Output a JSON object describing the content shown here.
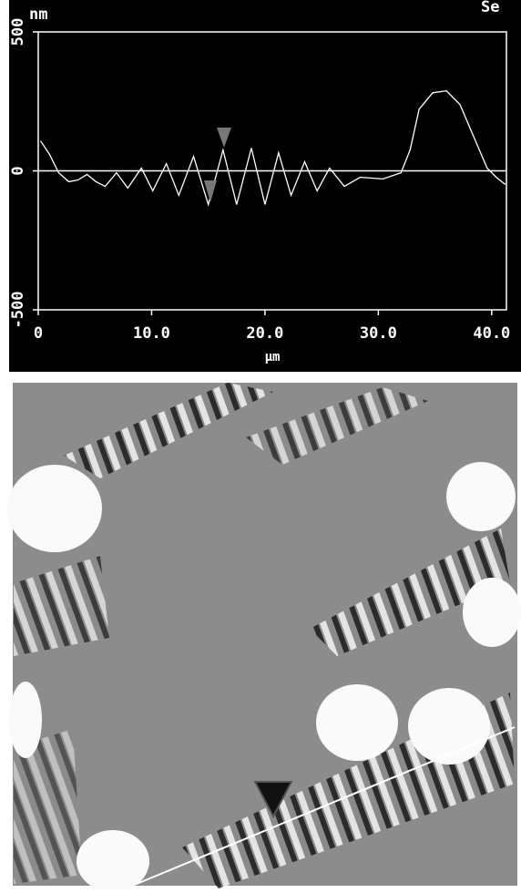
{
  "chart_data": {
    "type": "line",
    "title": "Se",
    "ylabel": "nm",
    "xlabel": "μm",
    "x": [
      0.2,
      1.0,
      1.8,
      2.7,
      3.5,
      4.3,
      5.1,
      5.9,
      6.9,
      7.9,
      9.1,
      10.1,
      11.3,
      12.4,
      13.7,
      15.0,
      16.3,
      17.5,
      18.8,
      20.0,
      21.2,
      22.3,
      23.5,
      24.6,
      25.7,
      27.0,
      28.4,
      30.4,
      32.0,
      32.8,
      33.6,
      34.8,
      36.0,
      37.2,
      38.4,
      39.6,
      40.4,
      41.2
    ],
    "series": [
      {
        "color": "#ffffff",
        "values": [
          108,
          59,
          -7,
          -39,
          -33,
          -13,
          -39,
          -56,
          -7,
          -62,
          10,
          -72,
          26,
          -88,
          52,
          -121,
          75,
          -121,
          82,
          -121,
          65,
          -88,
          33,
          -72,
          10,
          -56,
          -23,
          -29,
          -7,
          75,
          222,
          281,
          288,
          239,
          124,
          10,
          -23,
          -49
        ]
      }
    ],
    "xlim": [
      0,
      41.3
    ],
    "xticks": [
      0,
      {
        "value": 10,
        "label": "10.0"
      },
      {
        "value": 20,
        "label": "20.0"
      },
      {
        "value": 30,
        "label": "30.0"
      },
      {
        "value": 40,
        "label": "40.0"
      }
    ],
    "ylim": [
      -500,
      500
    ],
    "yticks": [
      -500,
      0,
      500
    ]
  }
}
